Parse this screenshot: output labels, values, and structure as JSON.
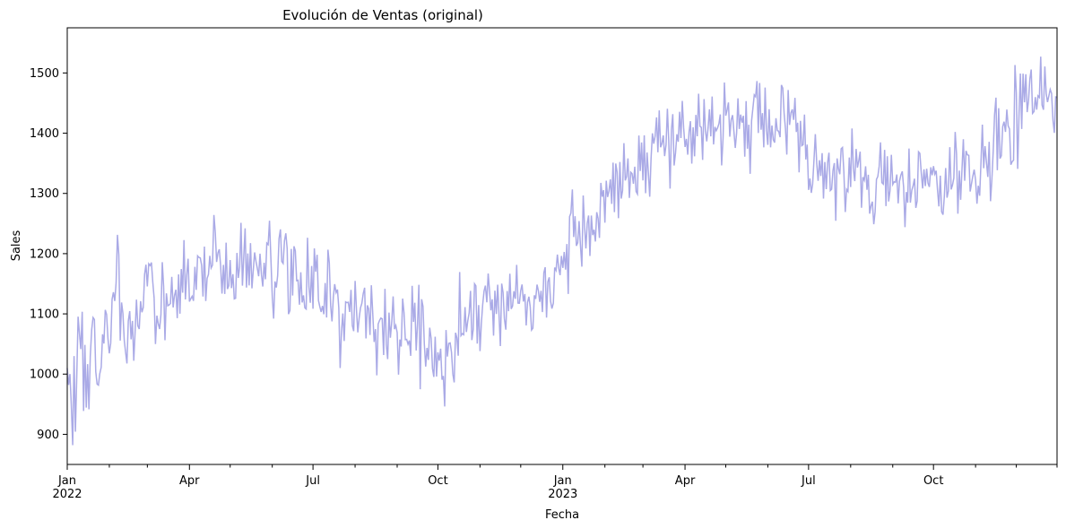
{
  "chart_data": {
    "type": "line",
    "title": "Evolución de Ventas (original)",
    "xlabel": "Fecha",
    "ylabel": "Sales",
    "x_start": "2022-01-01",
    "x_end": "2023-12-31",
    "x_frequency": "daily",
    "ylim": [
      850,
      1575
    ],
    "y_ticks": [
      900,
      1000,
      1100,
      1200,
      1300,
      1400,
      1500
    ],
    "x_major_ticks": [
      {
        "date": "2022-01-01",
        "label": "Jan",
        "sublabel": "2022"
      },
      {
        "date": "2022-04-01",
        "label": "Apr",
        "sublabel": ""
      },
      {
        "date": "2022-07-01",
        "label": "Jul",
        "sublabel": ""
      },
      {
        "date": "2022-10-01",
        "label": "Oct",
        "sublabel": ""
      },
      {
        "date": "2023-01-01",
        "label": "Jan",
        "sublabel": "2023"
      },
      {
        "date": "2023-04-01",
        "label": "Apr",
        "sublabel": ""
      },
      {
        "date": "2023-07-01",
        "label": "Jul",
        "sublabel": ""
      },
      {
        "date": "2023-10-01",
        "label": "Oct",
        "sublabel": ""
      }
    ],
    "x_minor_ticks": [
      "2022-02-01",
      "2022-03-01",
      "2022-05-01",
      "2022-06-01",
      "2022-08-01",
      "2022-09-01",
      "2022-11-01",
      "2022-12-01",
      "2023-02-01",
      "2023-03-01",
      "2023-05-01",
      "2023-06-01",
      "2023-08-01",
      "2023-09-01",
      "2023-11-01",
      "2023-12-01",
      "2023-12-31"
    ],
    "grid": false,
    "legend": "none",
    "series": [
      {
        "color": "#aaaae6",
        "points": [
          [
            "2022-01-01",
            1010
          ],
          [
            "2022-01-04",
            985
          ],
          [
            "2022-01-06",
            882
          ],
          [
            "2022-01-08",
            1030
          ],
          [
            "2022-01-12",
            1070
          ],
          [
            "2022-01-15",
            945
          ],
          [
            "2022-01-20",
            1040
          ],
          [
            "2022-01-25",
            985
          ],
          [
            "2022-01-31",
            1060
          ],
          [
            "2022-02-07",
            1178
          ],
          [
            "2022-02-13",
            1055
          ],
          [
            "2022-02-20",
            1100
          ],
          [
            "2022-02-28",
            1160
          ],
          [
            "2022-03-07",
            1100
          ],
          [
            "2022-03-14",
            1130
          ],
          [
            "2022-03-21",
            1125
          ],
          [
            "2022-03-28",
            1135
          ],
          [
            "2022-04-04",
            1150
          ],
          [
            "2022-04-11",
            1155
          ],
          [
            "2022-04-18",
            1175
          ],
          [
            "2022-04-25",
            1165
          ],
          [
            "2022-05-02",
            1170
          ],
          [
            "2022-05-09",
            1180
          ],
          [
            "2022-05-16",
            1190
          ],
          [
            "2022-05-23",
            1175
          ],
          [
            "2022-05-30",
            1180
          ],
          [
            "2022-06-06",
            1170
          ],
          [
            "2022-06-13",
            1175
          ],
          [
            "2022-06-20",
            1160
          ],
          [
            "2022-06-27",
            1150
          ],
          [
            "2022-07-04",
            1145
          ],
          [
            "2022-07-11",
            1125
          ],
          [
            "2022-07-18",
            1110
          ],
          [
            "2022-07-25",
            1100
          ],
          [
            "2022-08-01",
            1095
          ],
          [
            "2022-08-08",
            1090
          ],
          [
            "2022-08-15",
            1085
          ],
          [
            "2022-08-22",
            1080
          ],
          [
            "2022-08-29",
            1080
          ],
          [
            "2022-09-05",
            1075
          ],
          [
            "2022-09-12",
            1070
          ],
          [
            "2022-09-19",
            1060
          ],
          [
            "2022-09-26",
            1050
          ],
          [
            "2022-10-03",
            1040
          ],
          [
            "2022-10-10",
            1055
          ],
          [
            "2022-10-17",
            1080
          ],
          [
            "2022-10-24",
            1100
          ],
          [
            "2022-10-31",
            1110
          ],
          [
            "2022-11-07",
            1120
          ],
          [
            "2022-11-14",
            1125
          ],
          [
            "2022-11-21",
            1130
          ],
          [
            "2022-11-28",
            1125
          ],
          [
            "2022-12-05",
            1130
          ],
          [
            "2022-12-12",
            1140
          ],
          [
            "2022-12-19",
            1150
          ],
          [
            "2022-12-26",
            1175
          ],
          [
            "2023-01-02",
            1200
          ],
          [
            "2023-01-09",
            1225
          ],
          [
            "2023-01-16",
            1240
          ],
          [
            "2023-01-23",
            1260
          ],
          [
            "2023-01-30",
            1280
          ],
          [
            "2023-02-06",
            1300
          ],
          [
            "2023-02-13",
            1320
          ],
          [
            "2023-02-20",
            1335
          ],
          [
            "2023-02-27",
            1350
          ],
          [
            "2023-03-06",
            1370
          ],
          [
            "2023-03-13",
            1380
          ],
          [
            "2023-03-20",
            1395
          ],
          [
            "2023-03-27",
            1405
          ],
          [
            "2023-04-03",
            1410
          ],
          [
            "2023-04-10",
            1415
          ],
          [
            "2023-04-17",
            1418
          ],
          [
            "2023-04-24",
            1420
          ],
          [
            "2023-05-01",
            1420
          ],
          [
            "2023-05-08",
            1418
          ],
          [
            "2023-05-15",
            1415
          ],
          [
            "2023-05-22",
            1410
          ],
          [
            "2023-05-29",
            1410
          ],
          [
            "2023-06-05",
            1405
          ],
          [
            "2023-06-12",
            1400
          ],
          [
            "2023-06-19",
            1395
          ],
          [
            "2023-06-26",
            1385
          ],
          [
            "2023-07-03",
            1365
          ],
          [
            "2023-07-10",
            1345
          ],
          [
            "2023-07-17",
            1335
          ],
          [
            "2023-07-24",
            1330
          ],
          [
            "2023-07-31",
            1330
          ],
          [
            "2023-08-07",
            1330
          ],
          [
            "2023-08-14",
            1325
          ],
          [
            "2023-08-21",
            1315
          ],
          [
            "2023-08-28",
            1310
          ],
          [
            "2023-09-04",
            1305
          ],
          [
            "2023-09-11",
            1305
          ],
          [
            "2023-09-18",
            1310
          ],
          [
            "2023-09-25",
            1315
          ],
          [
            "2023-10-02",
            1320
          ],
          [
            "2023-10-09",
            1315
          ],
          [
            "2023-10-16",
            1310
          ],
          [
            "2023-10-23",
            1320
          ],
          [
            "2023-10-30",
            1335
          ],
          [
            "2023-11-06",
            1355
          ],
          [
            "2023-11-13",
            1375
          ],
          [
            "2023-11-20",
            1395
          ],
          [
            "2023-11-27",
            1410
          ],
          [
            "2023-12-04",
            1430
          ],
          [
            "2023-12-11",
            1445
          ],
          [
            "2023-12-18",
            1460
          ],
          [
            "2023-12-25",
            1470
          ],
          [
            "2023-12-31",
            1450
          ]
        ]
      }
    ]
  }
}
